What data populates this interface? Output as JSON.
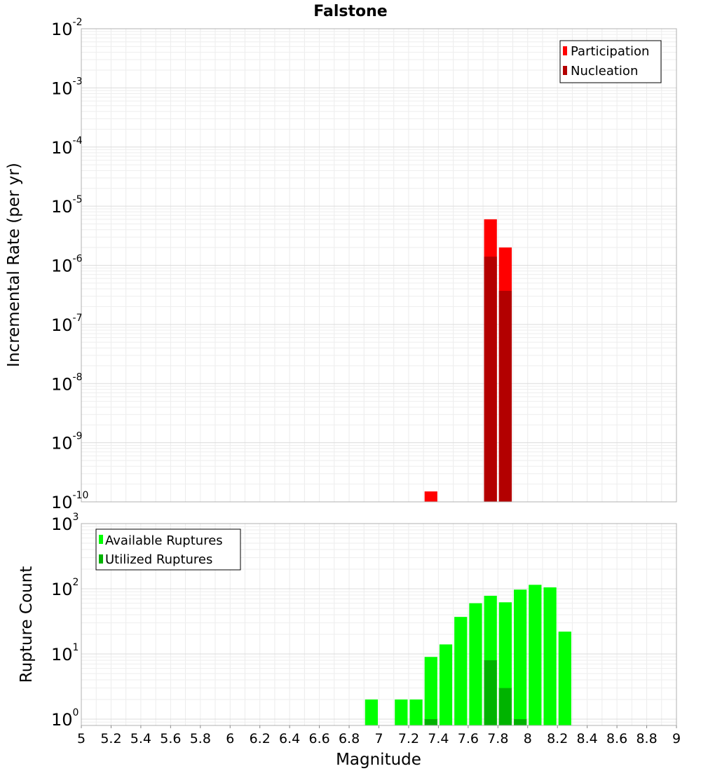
{
  "chart_data": [
    {
      "type": "bar",
      "title": "Falstone",
      "xlabel": "Magnitude",
      "ylabel": "Incremental Rate (per yr)",
      "yscale": "log",
      "ylim": [
        1e-10,
        0.01
      ],
      "xlim": [
        5,
        9
      ],
      "bin_width": 0.1,
      "y_ticks": [
        {
          "base": "10",
          "exp": "-10"
        },
        {
          "base": "10",
          "exp": "-9"
        },
        {
          "base": "10",
          "exp": "-8"
        },
        {
          "base": "10",
          "exp": "-7"
        },
        {
          "base": "10",
          "exp": "-6"
        },
        {
          "base": "10",
          "exp": "-5"
        },
        {
          "base": "10",
          "exp": "-4"
        },
        {
          "base": "10",
          "exp": "-3"
        },
        {
          "base": "10",
          "exp": "-2"
        }
      ],
      "legend": {
        "position": "top-right",
        "entries": [
          "Participation",
          "Nucleation"
        ]
      },
      "series": [
        {
          "name": "Participation",
          "color": "#ff0000",
          "x": [
            7.35,
            7.75,
            7.85
          ],
          "values": [
            1.5e-10,
            6e-06,
            2e-06
          ]
        },
        {
          "name": "Nucleation",
          "color": "#b30000",
          "x": [
            7.75,
            7.85
          ],
          "values": [
            1.4e-06,
            3.7e-07
          ]
        }
      ]
    },
    {
      "type": "bar",
      "xlabel": "Magnitude",
      "ylabel": "Rupture Count",
      "yscale": "log",
      "ylim": [
        0.8,
        1000
      ],
      "xlim": [
        5,
        9
      ],
      "bin_width": 0.1,
      "y_ticks": [
        {
          "base": "10",
          "exp": "0"
        },
        {
          "base": "10",
          "exp": "1"
        },
        {
          "base": "10",
          "exp": "2"
        },
        {
          "base": "10",
          "exp": "3"
        }
      ],
      "x_tick_labels": [
        "5",
        "5.2",
        "5.4",
        "5.6",
        "5.8",
        "6",
        "6.2",
        "6.4",
        "6.6",
        "6.8",
        "7",
        "7.2",
        "7.4",
        "7.6",
        "7.8",
        "8",
        "8.2",
        "8.4",
        "8.6",
        "8.8",
        "9"
      ],
      "legend": {
        "position": "top-left",
        "entries": [
          "Available Ruptures",
          "Utilized Ruptures"
        ]
      },
      "series": [
        {
          "name": "Available Ruptures",
          "color": "#00ff00",
          "x": [
            6.95,
            7.15,
            7.25,
            7.35,
            7.45,
            7.55,
            7.65,
            7.75,
            7.85,
            7.95,
            8.05,
            8.15,
            8.25
          ],
          "values": [
            2,
            2,
            2,
            9,
            14,
            37,
            60,
            78,
            62,
            97,
            115,
            105,
            22
          ]
        },
        {
          "name": "Utilized Ruptures",
          "color": "#00b300",
          "x": [
            7.35,
            7.75,
            7.85,
            7.95
          ],
          "values": [
            1,
            8,
            3,
            1
          ]
        }
      ]
    }
  ]
}
